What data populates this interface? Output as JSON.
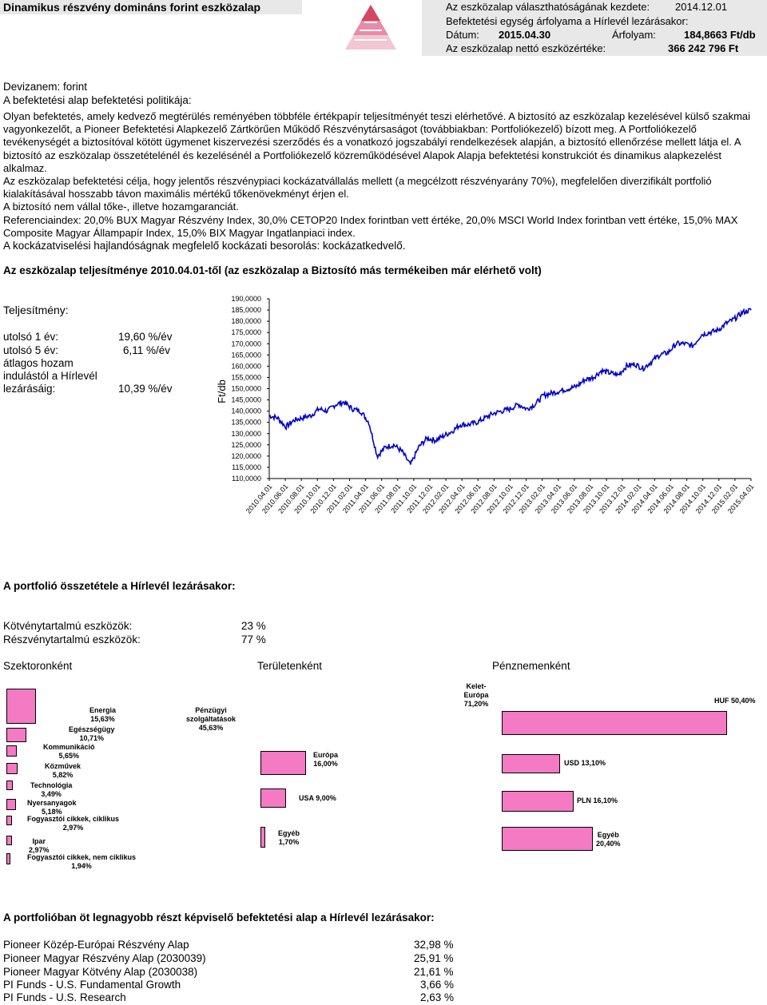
{
  "header": {
    "title": "Dinamikus részvény domináns forint eszközalap",
    "launch_label": "Az eszközalap választhatóságának kezdete:",
    "launch_date": "2014.12.01",
    "unit_price_label": "Befektetési egység árfolyama a Hírlevél lezárásakor:",
    "date_label": "Dátum:",
    "date_value": "2015.04.30",
    "price_label": "Árfolyam:",
    "price_value": "184,8663 Ft/db",
    "nav_label": "Az eszközalap nettó eszközértéke:",
    "nav_value": "366 242 796 Ft"
  },
  "info": {
    "currency": "Devizanem: forint",
    "policy_heading": "A befektetési alap befektetési politikája:",
    "policy_p1": "Olyan befektetés, amely kedvező megtérülés reményében többféle értékpapír teljesítményét teszi elérhetővé. A biztosító az eszközalap kezelésével külső szakmai vagyonkezelőt, a Pioneer Befektetési Alapkezelő Zártkörűen Működő Részvénytársaságot (továbbiakban: Portfoliókezelő) bízott meg. A Portfoliókezelő tevékenységét a biztosítóval kötött ügymenet kiszervezési szerződés és a vonatkozó jogszabályi rendelkezések alapján, a biztosító ellenőrzése mellett látja el. A biztosító az eszközalap összetételénél és kezelésénél a Portfoliókezelő közreműködésével Alapok Alapja befektetési konstrukciót és dinamikus alapkezelést alkalmaz.",
    "policy_p2": "Az eszközalap befektetési célja, hogy jelentős részvénypiaci kockázatvállalás mellett (a megcélzott részvényarány 70%), megfelelően diverzifikált portfolió kialakításával hosszabb távon maximális mértékű tőkenövekményt érjen el.",
    "policy_p3": "A biztosító nem vállal tőke-, illetve hozamgaranciát.",
    "policy_p4": "Referenciaindex: 20,0% BUX Magyar Részvény Index, 30,0% CETOP20 Index forintban vett értéke, 20,0% MSCI World Index forintban vett értéke, 15,0% MAX Composite Magyar Állampapír Index, 15,0% BIX Magyar Ingatlanpiaci index.",
    "risk": "A kockázatviselési hajlandóságnak megfelelő kockázati besorolás: kockázatkedvelő.",
    "performance_heading": "Az eszközalap teljesítménye 2010.04.01-től (az eszközalap a Biztosító más termékeiben már elérhető volt)"
  },
  "performance": {
    "label": "Teljesítmény:",
    "rows": [
      {
        "label": "utolsó 1 év:",
        "value": "19,60 %/év"
      },
      {
        "label": "utolsó 5 év:",
        "value": "6,11 %/év"
      },
      {
        "label": "átlagos hozam",
        "value": ""
      },
      {
        "label": "indulástól a Hírlevél",
        "value": ""
      },
      {
        "label": "lezárásáig:",
        "value": "10,39 %/év"
      }
    ]
  },
  "chart_data": {
    "type": "line",
    "ylabel": "Ft/db",
    "ylim": [
      110,
      190
    ],
    "yticks": [
      "110,0000",
      "115,0000",
      "120,0000",
      "125,0000",
      "130,0000",
      "135,0000",
      "140,0000",
      "145,0000",
      "150,0000",
      "155,0000",
      "160,0000",
      "165,0000",
      "170,0000",
      "175,0000",
      "180,0000",
      "185,0000",
      "190,0000"
    ],
    "xticks": [
      "2010.04.01",
      "2010.06.01",
      "2010.08.01",
      "2010.10.01",
      "2010.12.01",
      "2011.02.01",
      "2011.04.01",
      "2011.06.01",
      "2011.08.01",
      "2011.10.01",
      "2011.12.01",
      "2012.02.01",
      "2012.04.01",
      "2012.06.01",
      "2012.08.01",
      "2012.10.01",
      "2012.12.01",
      "2013.02.01",
      "2013.04.01",
      "2013.06.01",
      "2013.08.01",
      "2013.10.01",
      "2013.12.01",
      "2014.02.01",
      "2014.04.01",
      "2014.06.01",
      "2014.08.01",
      "2014.10.01",
      "2014.12.01",
      "2015.02.01",
      "2015.04.01"
    ],
    "series": [
      {
        "values": [
          138,
          137,
          133,
          136,
          137,
          138,
          141,
          140,
          143,
          144,
          141,
          140,
          135,
          120,
          124,
          125,
          122,
          116,
          124,
          128,
          127,
          129,
          131,
          134,
          134,
          135,
          137,
          139,
          140,
          141,
          143,
          141,
          143,
          147,
          148,
          149,
          150,
          151,
          154,
          155,
          158,
          157,
          156,
          160,
          161,
          159,
          162,
          165,
          166,
          170,
          170,
          169,
          174,
          175,
          176,
          179,
          181,
          184,
          185
        ]
      }
    ],
    "line_color": "#0000cc"
  },
  "portfolio": {
    "heading": "A portfolió összetétele a Hírlevél lezárásakor:",
    "rows": [
      {
        "label": "Kötvénytartalmú eszközök:",
        "value": "23 %"
      },
      {
        "label": "Részvénytartalmú eszközök:",
        "value": "77 %"
      }
    ],
    "titles": {
      "sector": "Szektoronként",
      "region": "Területenként",
      "currency": "Pénznemenként"
    }
  },
  "sector_chart": {
    "type": "bar",
    "bar_color": "#f47ac3",
    "items": [
      {
        "label": "Energia",
        "value": "15,63%",
        "pct": 15.63
      },
      {
        "label": "Egészségügy",
        "value": "10,71%",
        "pct": 10.71
      },
      {
        "label": "Kommunikáció",
        "value": "5,65%",
        "pct": 5.65
      },
      {
        "label": "Közművek",
        "value": "5,82%",
        "pct": 5.82
      },
      {
        "label": "Technológia",
        "value": "3,49%",
        "pct": 3.49
      },
      {
        "label": "Nyersanyagok",
        "value": "5,18%",
        "pct": 5.18
      },
      {
        "label": "Fogyasztói cikkek, ciklikus",
        "value": "2,97%",
        "pct": 2.97
      },
      {
        "label": "Ipar",
        "value": "2,97%",
        "pct": 2.97
      },
      {
        "label": "Fogyasztói cikkek, nem ciklikus",
        "value": "1,94%",
        "pct": 1.94
      },
      {
        "label": "Pénzügyi szolgáltatások",
        "value": "45,63%",
        "pct": 45.63
      }
    ]
  },
  "region_chart": {
    "type": "bar",
    "items": [
      {
        "label": "Kelet-Európa",
        "value": "71,20%",
        "pct": 71.2
      },
      {
        "label": "Európa",
        "value": "16,00%",
        "pct": 16.0
      },
      {
        "label": "USA",
        "value": "9,00%",
        "pct": 9.0
      },
      {
        "label": "Egyéb",
        "value": "1,70%",
        "pct": 1.7
      }
    ]
  },
  "currency_chart": {
    "type": "bar",
    "items": [
      {
        "label": "HUF",
        "value": "50,40%",
        "pct": 50.4
      },
      {
        "label": "USD",
        "value": "13,10%",
        "pct": 13.1
      },
      {
        "label": "PLN",
        "value": "16,10%",
        "pct": 16.1
      },
      {
        "label": "Egyéb",
        "value": "20,40%",
        "pct": 20.4
      }
    ]
  },
  "top_funds": {
    "heading": "A portfolióban öt legnagyobb részt képviselő befektetési alap a Hírlevél lezárásakor:",
    "rows": [
      {
        "name": "Pioneer Közép-Európai Részvény Alap",
        "value": "32,98 %"
      },
      {
        "name": "Pioneer Magyar Részvény Alap (2030039)",
        "value": "25,91 %"
      },
      {
        "name": "Pioneer Magyar Kötvény Alap (2030038)",
        "value": "21,61 %"
      },
      {
        "name": "PI Funds - U.S. Fundamental Growth",
        "value": "3,66 %"
      },
      {
        "name": "PI Funds - U.S. Research",
        "value": "2,63 %"
      }
    ]
  }
}
